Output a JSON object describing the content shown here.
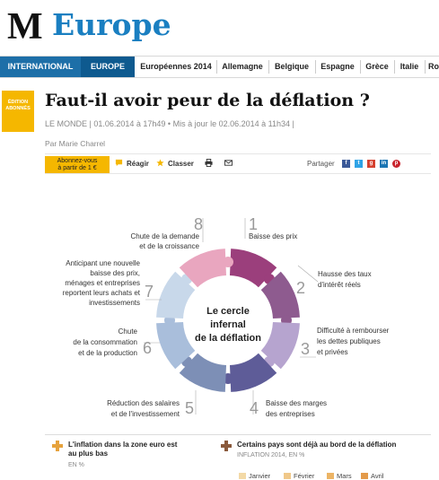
{
  "masthead": {
    "logo": "M",
    "section": "Europe"
  },
  "nav": [
    {
      "label": "INTERNATIONAL"
    },
    {
      "label": "EUROPE"
    },
    {
      "label": "Européennes 2014"
    },
    {
      "label": "Allemagne"
    },
    {
      "label": "Belgique"
    },
    {
      "label": "Espagne"
    },
    {
      "label": "Grèce"
    },
    {
      "label": "Italie"
    },
    {
      "label": "Ro"
    }
  ],
  "badge": {
    "line1": "ÉDITION",
    "line2": "ABONNÉS"
  },
  "article": {
    "headline": "Faut-il avoir peur de la déflation ?",
    "meta": "LE MONDE | 01.06.2014 à 17h49 • Mis à jour le 02.06.2014 à 11h34 |",
    "author": "Par Marie Charrel"
  },
  "toolbar": {
    "subscribe_line1": "Abonnez-vous",
    "subscribe_line2": "à partir de 1 €",
    "react": "Réagir",
    "save": "Classer",
    "share_label": "Partager",
    "share_icons": [
      {
        "name": "facebook-icon",
        "glyph": "f",
        "color": "#3b5998"
      },
      {
        "name": "twitter-icon",
        "glyph": "t",
        "color": "#2fa3e6"
      },
      {
        "name": "googleplus-icon",
        "glyph": "g",
        "color": "#d5412f"
      },
      {
        "name": "linkedin-icon",
        "glyph": "in",
        "color": "#1a75b3"
      },
      {
        "name": "pinterest-icon",
        "glyph": "p",
        "color": "#c8232c"
      }
    ]
  },
  "infographic": {
    "center_line1": "Le cercle",
    "center_line2": "infernal",
    "center_line3": "de la déflation",
    "steps": [
      {
        "num": "1",
        "line1": "Baisse des prix",
        "line2": "",
        "line3": "",
        "line4": "",
        "line5": "",
        "color": "#9b3f7c"
      },
      {
        "num": "2",
        "line1": "Hausse des taux",
        "line2": "d'intérêt réels",
        "line3": "",
        "line4": "",
        "line5": "",
        "color": "#8e5b8f"
      },
      {
        "num": "3",
        "line1": "Difficulté à rembourser",
        "line2": "les dettes publiques",
        "line3": "et privées",
        "line4": "",
        "line5": "",
        "color": "#b6a4cf"
      },
      {
        "num": "4",
        "line1": "Baisse des marges",
        "line2": "des entreprises",
        "line3": "",
        "line4": "",
        "line5": "",
        "color": "#5e5c98"
      },
      {
        "num": "5",
        "line1": "Réduction des salaires",
        "line2": "et de l'investissement",
        "line3": "",
        "line4": "",
        "line5": "",
        "color": "#7d8fb6"
      },
      {
        "num": "6",
        "line1": "Chute",
        "line2": "de la consommation",
        "line3": "et de la production",
        "line4": "",
        "line5": "",
        "color": "#a9bedb"
      },
      {
        "num": "7",
        "line1": "Anticipant une nouvelle",
        "line2": "baisse des prix,",
        "line3": "ménages et entreprises",
        "line4": "reportent leurs achats et",
        "line5": "investissements",
        "color": "#c8d8ea"
      },
      {
        "num": "8",
        "line1": "Chute de la demande",
        "line2": "et de la croissance",
        "line3": "",
        "line4": "",
        "line5": "",
        "color": "#e9a6bf"
      }
    ]
  },
  "bottom": {
    "left_title": "L'inflation dans la zone euro est au plus bas",
    "left_sub": "EN %",
    "right_title": "Certains pays sont déjà au bord de la déflation",
    "right_sub": "INFLATION 2014, EN %",
    "legend": [
      {
        "label": "Janvier",
        "color": "#f3d9a6"
      },
      {
        "label": "Février",
        "color": "#f0c889"
      },
      {
        "label": "Mars",
        "color": "#ecb465"
      },
      {
        "label": "Avril",
        "color": "#e39a4a"
      }
    ],
    "accent": "#e6a23c"
  }
}
